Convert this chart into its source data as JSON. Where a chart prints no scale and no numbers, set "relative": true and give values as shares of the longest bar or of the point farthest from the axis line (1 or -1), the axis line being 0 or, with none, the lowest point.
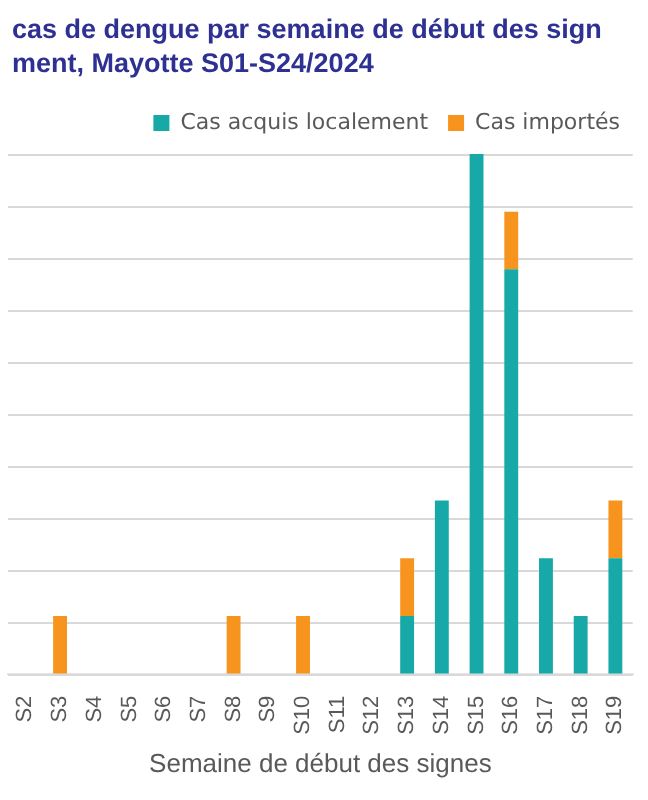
{
  "chart_data": {
    "type": "bar",
    "title": "cas de dengue par semaine de début des sign\nment, Mayotte S01-S24/2024",
    "xlabel": "Semaine de début des signes",
    "categories": [
      "S2",
      "S3",
      "S4",
      "S5",
      "S6",
      "S7",
      "S8",
      "S9",
      "S10",
      "S11",
      "S12",
      "S13",
      "S14",
      "S15",
      "S16",
      "S17",
      "S18",
      "S19"
    ],
    "series": [
      {
        "name": "Cas acquis localement",
        "color": "#17a9a8",
        "values": [
          0,
          0,
          0,
          0,
          0,
          0,
          0,
          0,
          0,
          0,
          0,
          0.111,
          0.333,
          1,
          0.778,
          0.222,
          0.111,
          0.222
        ]
      },
      {
        "name": "Cas importés",
        "color": "#f7941d",
        "values": [
          0,
          0.111,
          0,
          0,
          0,
          0,
          0.111,
          0,
          0.111,
          0,
          0,
          0.111,
          0,
          0,
          0.111,
          0,
          0,
          0.111
        ]
      }
    ],
    "stacked": true,
    "relative": true,
    "grid": true,
    "legend": "top right"
  }
}
